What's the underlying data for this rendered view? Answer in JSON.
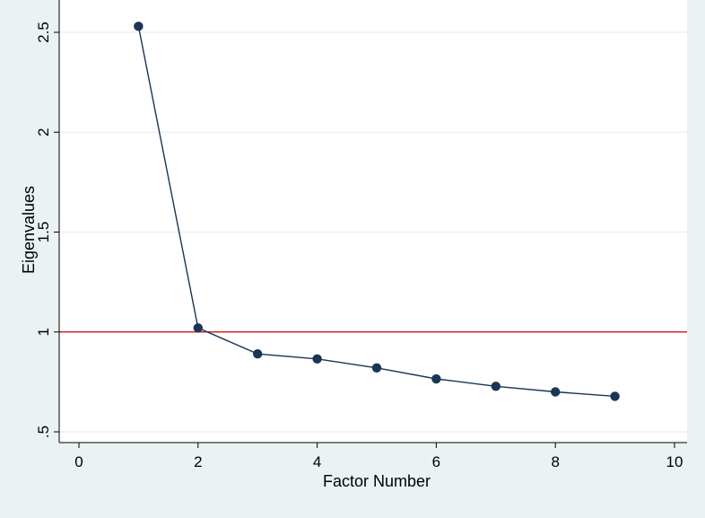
{
  "chart_data": {
    "type": "line",
    "title": "",
    "xlabel": "Factor Number",
    "ylabel": "Eigenvalues",
    "xlim": [
      0,
      10
    ],
    "ylim": [
      0.5,
      2.5
    ],
    "x_ticks": [
      0,
      2,
      4,
      6,
      8,
      10
    ],
    "x_tick_labels": [
      "0",
      "2",
      "4",
      "6",
      "8",
      "10"
    ],
    "y_ticks": [
      0.5,
      1,
      1.5,
      2,
      2.5
    ],
    "y_tick_labels": [
      ".5",
      "1",
      "1.5",
      "2",
      "2.5"
    ],
    "grid": true,
    "reference_line": {
      "y": 1,
      "color": "#d62728"
    },
    "series": [
      {
        "x": [
          1,
          2,
          3,
          4,
          5,
          6,
          7,
          8,
          9
        ],
        "y": [
          2.53,
          1.02,
          0.89,
          0.865,
          0.82,
          0.765,
          0.728,
          0.7,
          0.678
        ],
        "color": "#1a3556"
      }
    ],
    "colors": {
      "background": "#eaf2f3",
      "plot_area": "#ffffff",
      "grid": "#e6eef0",
      "axis": "#000000"
    }
  }
}
